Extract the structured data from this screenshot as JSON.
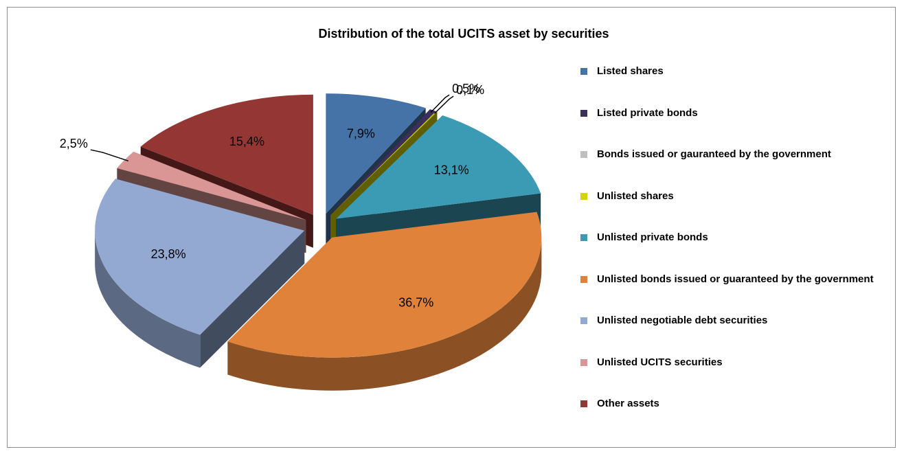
{
  "chart_data": {
    "type": "pie",
    "title": "Distribution of the total  UCITS asset  by securities",
    "categories": [
      "Listed shares",
      "Listed private bonds",
      "Bonds issued or gauranteed by the government",
      "Unlisted shares",
      "Unlisted private bonds",
      "Unlisted bonds issued  or guaranteed by the government",
      "Unlisted negotiable debt securities",
      "Unlisted  UCITS securities",
      "Other assets"
    ],
    "values": [
      7.9,
      0.5,
      0,
      0.1,
      13.1,
      36.7,
      23.8,
      2.5,
      15.4
    ],
    "value_labels": [
      "7,9%",
      "0,5%",
      null,
      "0,1%",
      "13,1%",
      "36,7%",
      "23,8%",
      "2,5%",
      "15,4%"
    ],
    "colors": [
      "#4572a7",
      "#3d2f5b",
      "#bfbfbf",
      "#d4d400",
      "#3c9bb4",
      "#e0823a",
      "#93a9d2",
      "#d99694",
      "#943634"
    ],
    "legend": "right"
  }
}
